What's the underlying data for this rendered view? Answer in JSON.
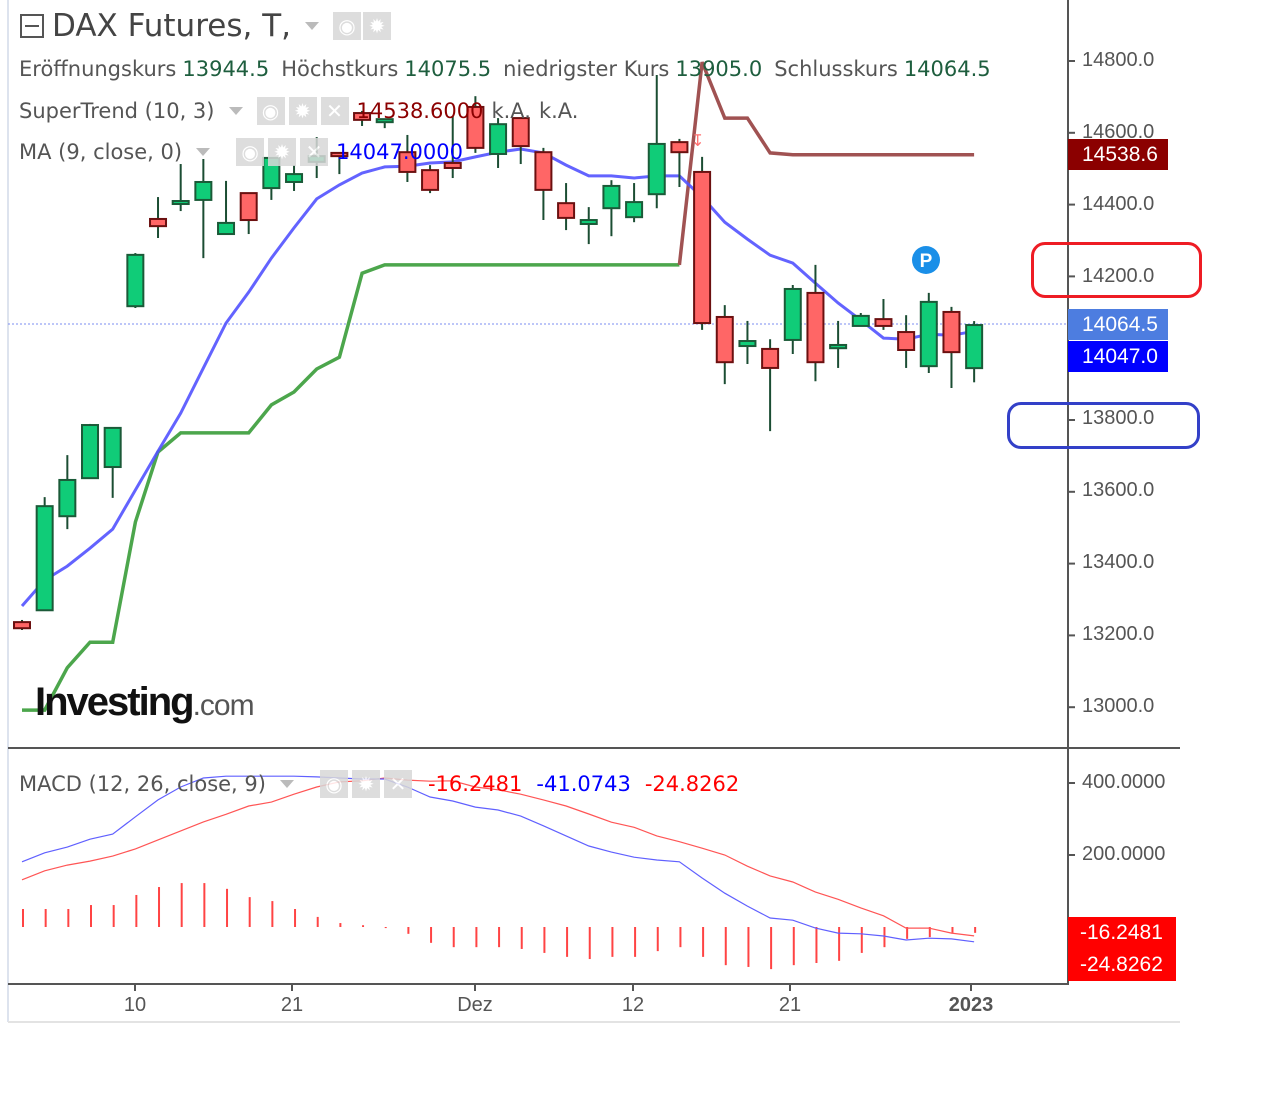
{
  "header": {
    "title": "DAX Futures, T,",
    "ohlc": [
      {
        "label": "Eröffnungskurs",
        "value": "13944.5"
      },
      {
        "label": "Höchstkurs",
        "value": "14075.5"
      },
      {
        "label": "niedrigster Kurs",
        "value": "13905.0"
      },
      {
        "label": "Schlusskurs",
        "value": "14064.5"
      }
    ]
  },
  "indicators": {
    "supertrend": {
      "label": "SuperTrend (10, 3)",
      "value": "14538.6000",
      "extra1": "k.A.",
      "extra2": "k.A."
    },
    "ma": {
      "label": "MA (9, close, 0)",
      "value": "14047.0000"
    },
    "macd": {
      "label": "MACD (12, 26, close, 9)",
      "hist_value": "-16.2481",
      "macd_value": "-41.0743",
      "signal_value": "-24.8262"
    }
  },
  "icons": {
    "collapse": "collapse-icon",
    "visibility": "eye-icon",
    "settings": "gear-icon",
    "remove": "close-icon",
    "dropdown": "chevron-down-icon",
    "pivot": "P"
  },
  "logo": {
    "main": "Investing",
    "domain": ".com"
  },
  "price_axis": {
    "ticks": [
      "14800.0",
      "14600.0",
      "14400.0",
      "14200.0",
      "13800.0",
      "13600.0",
      "13400.0",
      "13200.0",
      "13000.0"
    ],
    "last_price": "14064.5",
    "ma_price": "14047.0",
    "supertrend_price": "14538.6"
  },
  "macd_axis": {
    "ticks": [
      "400.0000",
      "200.0000"
    ],
    "hist_label": "-16.2481",
    "signal_label": "-24.8262"
  },
  "time_axis": {
    "labels": [
      "10",
      "21",
      "Dez",
      "12",
      "21",
      "2023"
    ]
  },
  "colors": {
    "up": "#10cc78",
    "down": "#ff6666",
    "ma": "#5252ff",
    "supertrend_up": "#4ca64c",
    "supertrend_down": "#a05252",
    "macd": "#6060ff",
    "signal": "#ff5555",
    "hist": "#ff4444",
    "annotation_red": "#ee1c24",
    "annotation_blue": "#3340c8"
  },
  "chart_data": [
    {
      "type": "candlestick",
      "ylim": [
        12900,
        14900
      ],
      "ohlc": [
        [
          13237,
          13243,
          13215,
          13220
        ],
        [
          13270,
          13585,
          13270,
          13560
        ],
        [
          13532,
          13702,
          13496,
          13633
        ],
        [
          13638,
          13789,
          13638,
          13786
        ],
        [
          13669,
          13778,
          13583,
          13778
        ],
        [
          14117,
          14265,
          14112,
          14260
        ],
        [
          14360,
          14421,
          14307,
          14340
        ],
        [
          14402,
          14513,
          14382,
          14410
        ],
        [
          14413,
          14527,
          14251,
          14463
        ],
        [
          14318,
          14466,
          14318,
          14349
        ],
        [
          14432,
          14432,
          14318,
          14357
        ],
        [
          14446,
          14530,
          14413,
          14530
        ],
        [
          14463,
          14510,
          14438,
          14485
        ],
        [
          14519,
          14588,
          14474,
          14535
        ],
        [
          14544,
          14544,
          14485,
          14535
        ],
        [
          14655,
          14661,
          14619,
          14636
        ],
        [
          14630,
          14638,
          14613,
          14638
        ],
        [
          14546,
          14594,
          14463,
          14491
        ],
        [
          14496,
          14510,
          14432,
          14441
        ],
        [
          14516,
          14647,
          14474,
          14502
        ],
        [
          14672,
          14702,
          14544,
          14558
        ],
        [
          14541,
          14641,
          14502,
          14624
        ],
        [
          14641,
          14641,
          14513,
          14563
        ],
        [
          14546,
          14558,
          14357,
          14441
        ],
        [
          14404,
          14460,
          14329,
          14363
        ],
        [
          14346,
          14393,
          14290,
          14357
        ],
        [
          14390,
          14468,
          14312,
          14452
        ],
        [
          14365,
          14460,
          14351,
          14407
        ],
        [
          14429,
          14761,
          14390,
          14569
        ],
        [
          14574,
          14583,
          14449,
          14546
        ],
        [
          14491,
          14533,
          14051,
          14070
        ],
        [
          14087,
          14120,
          13900,
          13961
        ],
        [
          14006,
          14076,
          13956,
          14020
        ],
        [
          13998,
          14025,
          13769,
          13945
        ],
        [
          14023,
          14176,
          13984,
          14165
        ],
        [
          14154,
          14232,
          13908,
          13961
        ],
        [
          14000,
          14076,
          13945,
          14009
        ],
        [
          14062,
          14098,
          14062,
          14090
        ],
        [
          14081,
          14137,
          14051,
          14062
        ],
        [
          14045,
          14092,
          13945,
          13995
        ],
        [
          13950,
          14154,
          13931,
          14129
        ],
        [
          14101,
          14115,
          13889,
          13989
        ],
        [
          13944.5,
          14075.5,
          13905.0,
          14064.5
        ]
      ],
      "ma": [
        13282,
        13354,
        13393,
        13443,
        13496,
        13605,
        13713,
        13819,
        13945,
        14070,
        14156,
        14251,
        14335,
        14416,
        14455,
        14488,
        14505,
        14507,
        14516,
        14519,
        14533,
        14546,
        14555,
        14544,
        14510,
        14480,
        14480,
        14474,
        14480,
        14480,
        14421,
        14351,
        14304,
        14259,
        14237,
        14181,
        14126,
        14078,
        14028,
        14025,
        14039,
        14036,
        14047
      ],
      "supertrend_up": [
        12992,
        12992,
        13110,
        13181,
        13181,
        13516,
        13711,
        13764,
        13764,
        13764,
        13764,
        13842,
        13878,
        13942,
        13975,
        14209,
        14232,
        14232,
        14232,
        14232,
        14232,
        14232,
        14232,
        14232,
        14232,
        14232,
        14232,
        14232,
        14232,
        14232,
        null,
        null,
        null,
        null,
        null,
        null,
        null,
        null,
        null,
        null,
        null,
        null,
        null
      ],
      "supertrend_down": [
        null,
        null,
        null,
        null,
        null,
        null,
        null,
        null,
        null,
        null,
        null,
        null,
        null,
        null,
        null,
        null,
        null,
        null,
        null,
        null,
        null,
        null,
        null,
        null,
        null,
        null,
        null,
        null,
        null,
        14232,
        14797,
        14641,
        14641,
        14544,
        14538.6,
        14538.6,
        14538.6,
        14538.6,
        14538.6,
        14538.6,
        14538.6,
        14538.6,
        14538.6
      ],
      "last_price": 14064.5
    },
    {
      "type": "macd",
      "macd": [
        181,
        206,
        222,
        244,
        258,
        306,
        353,
        389,
        414,
        419,
        419,
        419,
        419,
        417,
        414,
        411,
        411,
        389,
        361,
        350,
        333,
        325,
        308,
        281,
        253,
        225,
        208,
        194,
        186,
        181,
        136,
        94,
        58,
        25,
        19,
        -3,
        -17,
        -19,
        -25,
        -36,
        -31,
        -33,
        -41.0743
      ],
      "signal": [
        131,
        156,
        172,
        183,
        197,
        217,
        242,
        267,
        292,
        313,
        336,
        347,
        369,
        389,
        403,
        406,
        414,
        408,
        405,
        406,
        389,
        381,
        369,
        353,
        336,
        314,
        291,
        277,
        253,
        237,
        219,
        200,
        169,
        142,
        125,
        97,
        77,
        53,
        31,
        -3,
        -3,
        -17,
        -24.8262
      ],
      "histogram": [
        50,
        50,
        50,
        61,
        61,
        89,
        111,
        122,
        122,
        106,
        83,
        72,
        50,
        28,
        11,
        5,
        -3,
        -19,
        -44,
        -56,
        -56,
        -56,
        -61,
        -72,
        -83,
        -89,
        -83,
        -83,
        -67,
        -56,
        -83,
        -106,
        -111,
        -117,
        -106,
        -100,
        -94,
        -72,
        -56,
        -33,
        -28,
        -16,
        -16.2481
      ]
    }
  ]
}
